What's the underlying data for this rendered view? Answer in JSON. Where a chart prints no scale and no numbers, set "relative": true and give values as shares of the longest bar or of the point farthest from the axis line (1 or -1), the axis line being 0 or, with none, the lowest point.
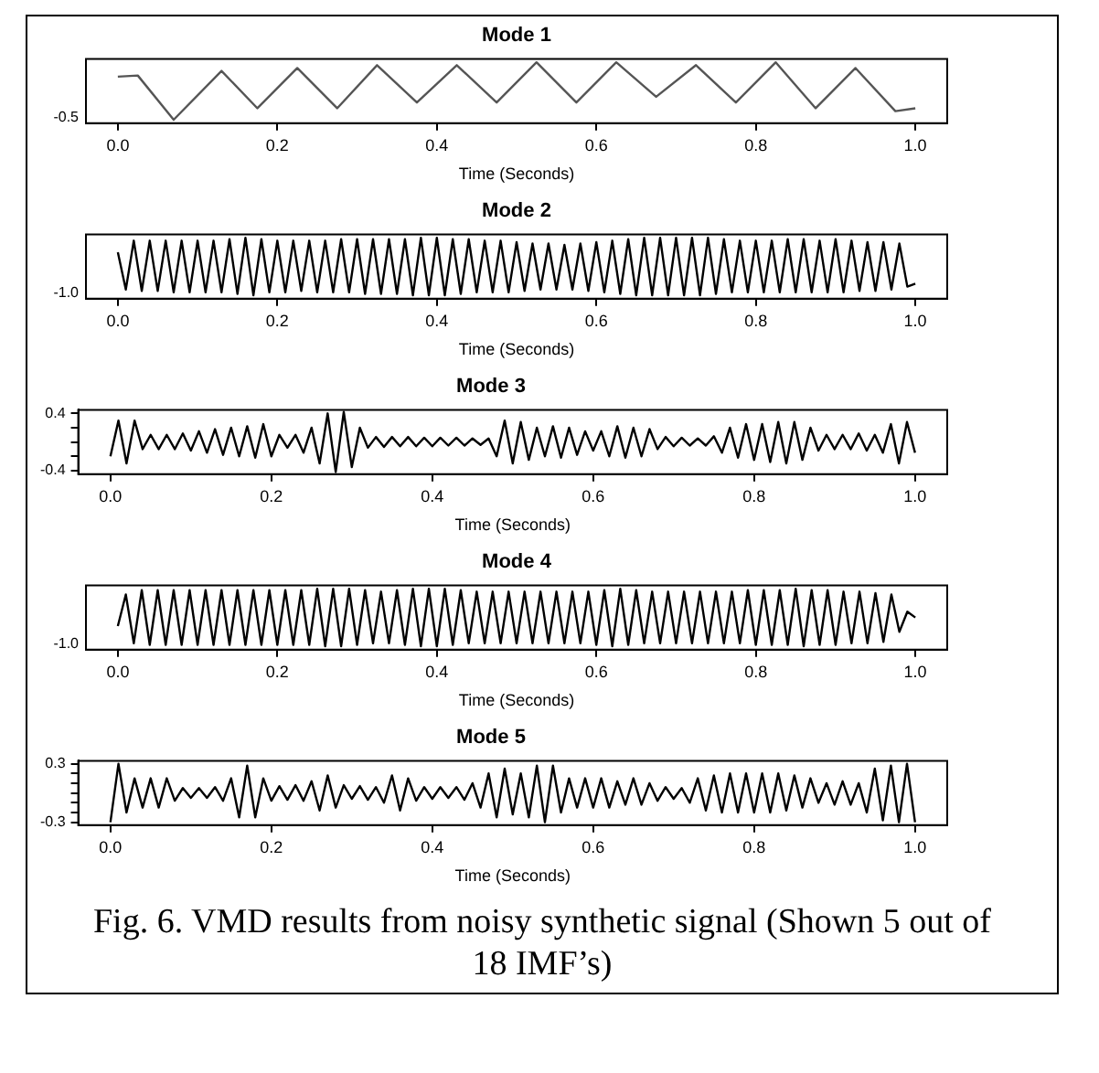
{
  "chart_data": [
    {
      "type": "line",
      "title": "Mode 1",
      "xlabel": "Time (Seconds)",
      "color": "#555555",
      "marker": "none",
      "line_style": "solid",
      "grid": false,
      "legend": false,
      "relative": true,
      "annotations": [
        "-0.5"
      ],
      "x": [
        0,
        0.025,
        0.07,
        0.13,
        0.175,
        0.225,
        0.275,
        0.325,
        0.375,
        0.425,
        0.475,
        0.525,
        0.575,
        0.625,
        0.675,
        0.725,
        0.775,
        0.825,
        0.875,
        0.925,
        0.975,
        1.0
      ],
      "values": [
        0.75,
        0.77,
        0,
        0.85,
        0.2,
        0.9,
        0.2,
        0.95,
        0.3,
        0.95,
        0.3,
        1,
        0.3,
        1,
        0.4,
        0.95,
        0.3,
        1,
        0.2,
        0.9,
        0.15,
        0.2
      ],
      "xlim": [
        -0.04,
        1.04
      ],
      "xticks": [
        {
          "value": 0,
          "label": "0.0"
        },
        {
          "value": 0.2,
          "label": "0.2"
        },
        {
          "value": 0.4,
          "label": "0.4"
        },
        {
          "value": 0.6,
          "label": "0.6"
        },
        {
          "value": 0.8,
          "label": "0.8"
        },
        {
          "value": 1,
          "label": "1.0"
        }
      ]
    },
    {
      "type": "line",
      "title": "Mode 2",
      "xlabel": "Time (Seconds)",
      "color": "#000000",
      "marker": "none",
      "line_style": "solid",
      "grid": false,
      "legend": false,
      "relative": true,
      "annotations": [
        "-1.0"
      ],
      "x": [
        0,
        0.01,
        0.02,
        0.03,
        0.04,
        0.05,
        0.06,
        0.07,
        0.08,
        0.09,
        0.1,
        0.11,
        0.12,
        0.13,
        0.14,
        0.15,
        0.16,
        0.17,
        0.18,
        0.19,
        0.2,
        0.21,
        0.22,
        0.23,
        0.24,
        0.25,
        0.26,
        0.27,
        0.28,
        0.29,
        0.3,
        0.31,
        0.32,
        0.33,
        0.34,
        0.35,
        0.36,
        0.37,
        0.38,
        0.39,
        0.4,
        0.41,
        0.42,
        0.43,
        0.44,
        0.45,
        0.46,
        0.47,
        0.48,
        0.49,
        0.5,
        0.51,
        0.52,
        0.53,
        0.54,
        0.55,
        0.56,
        0.57,
        0.58,
        0.59,
        0.6,
        0.61,
        0.62,
        0.63,
        0.64,
        0.65,
        0.66,
        0.67,
        0.68,
        0.69,
        0.7,
        0.71,
        0.72,
        0.73,
        0.74,
        0.75,
        0.76,
        0.77,
        0.78,
        0.79,
        0.8,
        0.81,
        0.82,
        0.83,
        0.84,
        0.85,
        0.86,
        0.87,
        0.88,
        0.89,
        0.9,
        0.91,
        0.92,
        0.93,
        0.94,
        0.95,
        0.96,
        0.97,
        0.98,
        0.99,
        1.0
      ],
      "values": [
        0.75,
        0.1,
        0.95,
        0.075,
        0.95,
        0.075,
        0.95,
        0.05,
        0.95,
        0.05,
        0.95,
        0.05,
        0.95,
        0.05,
        0.975,
        0.025,
        1,
        0,
        0.975,
        0.05,
        0.95,
        0.05,
        0.95,
        0.075,
        0.95,
        0.05,
        0.95,
        0.05,
        0.975,
        0.05,
        0.975,
        0.025,
        0.975,
        0.025,
        0.975,
        0.025,
        0.975,
        0,
        1,
        0,
        1,
        0,
        0.975,
        0.025,
        0.975,
        0.05,
        0.95,
        0.05,
        0.95,
        0.05,
        0.925,
        0.075,
        0.9,
        0.1,
        0.9,
        0.1,
        0.875,
        0.1,
        0.9,
        0.075,
        0.925,
        0.05,
        0.95,
        0.025,
        0.975,
        0,
        1,
        0,
        1,
        0,
        1,
        0,
        1,
        0,
        1,
        0.025,
        0.975,
        0.05,
        0.95,
        0.05,
        0.95,
        0.05,
        0.95,
        0.05,
        0.975,
        0.05,
        0.975,
        0.05,
        0.95,
        0.05,
        0.975,
        0.05,
        0.95,
        0.075,
        0.925,
        0.075,
        0.925,
        0.1,
        0.9,
        0.15,
        0.2
      ],
      "xlim": [
        -0.04,
        1.04
      ],
      "xticks": [
        {
          "value": 0,
          "label": "0.0"
        },
        {
          "value": 0.2,
          "label": "0.2"
        },
        {
          "value": 0.4,
          "label": "0.4"
        },
        {
          "value": 0.6,
          "label": "0.6"
        },
        {
          "value": 0.8,
          "label": "0.8"
        },
        {
          "value": 1,
          "label": "1.0"
        }
      ]
    },
    {
      "type": "line",
      "title": "Mode 3",
      "xlabel": "Time (Seconds)",
      "color": "#000000",
      "marker": "none",
      "line_style": "solid",
      "grid": false,
      "legend": false,
      "x": [
        0,
        0.01,
        0.02,
        0.03,
        0.04,
        0.05,
        0.06,
        0.07,
        0.08,
        0.09,
        0.1,
        0.11,
        0.12,
        0.13,
        0.14,
        0.15,
        0.16,
        0.17,
        0.18,
        0.19,
        0.2,
        0.21,
        0.22,
        0.23,
        0.24,
        0.25,
        0.26,
        0.27,
        0.28,
        0.29,
        0.3,
        0.31,
        0.32,
        0.33,
        0.34,
        0.35,
        0.36,
        0.37,
        0.38,
        0.39,
        0.4,
        0.41,
        0.42,
        0.43,
        0.44,
        0.45,
        0.46,
        0.47,
        0.48,
        0.49,
        0.5,
        0.51,
        0.52,
        0.53,
        0.54,
        0.55,
        0.56,
        0.57,
        0.58,
        0.59,
        0.6,
        0.61,
        0.62,
        0.63,
        0.64,
        0.65,
        0.66,
        0.67,
        0.68,
        0.69,
        0.7,
        0.71,
        0.72,
        0.73,
        0.74,
        0.75,
        0.76,
        0.77,
        0.78,
        0.79,
        0.8,
        0.81,
        0.82,
        0.83,
        0.84,
        0.85,
        0.86,
        0.87,
        0.88,
        0.89,
        0.9,
        0.91,
        0.92,
        0.93,
        0.94,
        0.95,
        0.96,
        0.97,
        0.98,
        0.99,
        1.0
      ],
      "values": [
        -0.2,
        0.3,
        -0.3,
        0.3,
        -0.1,
        0.1,
        -0.1,
        0.1,
        -0.1,
        0.12,
        -0.12,
        0.15,
        -0.15,
        0.18,
        -0.18,
        0.2,
        -0.2,
        0.22,
        -0.22,
        0.25,
        -0.2,
        0.1,
        -0.08,
        0.1,
        -0.15,
        0.2,
        -0.3,
        0.4,
        -0.42,
        0.42,
        -0.35,
        0.2,
        -0.08,
        0.07,
        -0.07,
        0.07,
        -0.06,
        0.07,
        -0.06,
        0.06,
        -0.06,
        0.06,
        -0.05,
        0.06,
        -0.05,
        0.05,
        -0.04,
        0.05,
        -0.2,
        0.3,
        -0.3,
        0.28,
        -0.25,
        0.2,
        -0.2,
        0.22,
        -0.22,
        0.2,
        -0.18,
        0.15,
        -0.12,
        0.15,
        -0.2,
        0.22,
        -0.22,
        0.2,
        -0.2,
        0.18,
        -0.1,
        0.07,
        -0.06,
        0.06,
        -0.05,
        0.05,
        -0.05,
        0.08,
        -0.15,
        0.2,
        -0.22,
        0.25,
        -0.25,
        0.25,
        -0.28,
        0.28,
        -0.3,
        0.28,
        -0.25,
        0.2,
        -0.12,
        0.1,
        -0.1,
        0.1,
        -0.1,
        0.12,
        -0.12,
        0.1,
        -0.15,
        0.25,
        -0.3,
        0.28,
        -0.15
      ],
      "xlim": [
        -0.04,
        1.04
      ],
      "xticks": [
        {
          "value": 0,
          "label": "0.0"
        },
        {
          "value": 0.2,
          "label": "0.2"
        },
        {
          "value": 0.4,
          "label": "0.4"
        },
        {
          "value": 0.6,
          "label": "0.6"
        },
        {
          "value": 0.8,
          "label": "0.8"
        },
        {
          "value": 1,
          "label": "1.0"
        }
      ],
      "ylim": [
        -0.45,
        0.45
      ],
      "yticks": [
        {
          "value": -0.4,
          "label": "-0.4"
        },
        {
          "value": -0.2,
          "label": null
        },
        {
          "value": 0,
          "label": null
        },
        {
          "value": 0.2,
          "label": null
        },
        {
          "value": 0.4,
          "label": "0.4"
        }
      ]
    },
    {
      "type": "line",
      "title": "Mode 4",
      "xlabel": "Time (Seconds)",
      "color": "#000000",
      "marker": "none",
      "line_style": "solid",
      "grid": false,
      "legend": false,
      "relative": true,
      "annotations": [
        "-1.0"
      ],
      "x": [
        0,
        0.01,
        0.02,
        0.03,
        0.04,
        0.05,
        0.06,
        0.07,
        0.08,
        0.09,
        0.1,
        0.11,
        0.12,
        0.13,
        0.14,
        0.15,
        0.16,
        0.17,
        0.18,
        0.19,
        0.2,
        0.21,
        0.22,
        0.23,
        0.24,
        0.25,
        0.26,
        0.27,
        0.28,
        0.29,
        0.3,
        0.31,
        0.32,
        0.33,
        0.34,
        0.35,
        0.36,
        0.37,
        0.38,
        0.39,
        0.4,
        0.41,
        0.42,
        0.43,
        0.44,
        0.45,
        0.46,
        0.47,
        0.48,
        0.49,
        0.5,
        0.51,
        0.52,
        0.53,
        0.54,
        0.55,
        0.56,
        0.57,
        0.58,
        0.59,
        0.6,
        0.61,
        0.62,
        0.63,
        0.64,
        0.65,
        0.66,
        0.67,
        0.68,
        0.69,
        0.7,
        0.71,
        0.72,
        0.73,
        0.74,
        0.75,
        0.76,
        0.77,
        0.78,
        0.79,
        0.8,
        0.81,
        0.82,
        0.83,
        0.84,
        0.85,
        0.86,
        0.87,
        0.88,
        0.89,
        0.9,
        0.91,
        0.92,
        0.93,
        0.94,
        0.95,
        0.96,
        0.97,
        0.98,
        0.99,
        1.0
      ],
      "values": [
        0.35,
        0.9,
        0.05,
        0.975,
        0.025,
        0.975,
        0.025,
        0.975,
        0.025,
        0.975,
        0.025,
        0.975,
        0.025,
        0.975,
        0.025,
        0.975,
        0.025,
        0.975,
        0.025,
        0.975,
        0.025,
        0.975,
        0.025,
        0.975,
        0.025,
        1,
        0,
        1,
        0,
        1,
        0.025,
        0.975,
        0.05,
        0.95,
        0.05,
        0.975,
        0.025,
        1,
        0,
        1,
        0,
        1,
        0.025,
        0.975,
        0.05,
        0.95,
        0.05,
        0.95,
        0.05,
        0.95,
        0.05,
        0.95,
        0.05,
        0.95,
        0.05,
        0.95,
        0.05,
        0.95,
        0.05,
        0.95,
        0.025,
        0.975,
        0,
        1,
        0.025,
        0.975,
        0.05,
        0.95,
        0.05,
        0.95,
        0.05,
        0.95,
        0.05,
        0.95,
        0.05,
        0.95,
        0.05,
        0.95,
        0.05,
        0.975,
        0.025,
        0.975,
        0.025,
        0.975,
        0.025,
        1,
        0,
        0.975,
        0.025,
        0.975,
        0.025,
        0.95,
        0.05,
        0.95,
        0.05,
        0.925,
        0.075,
        0.9,
        0.25,
        0.6,
        0.5
      ],
      "xlim": [
        -0.04,
        1.04
      ],
      "xticks": [
        {
          "value": 0,
          "label": "0.0"
        },
        {
          "value": 0.2,
          "label": "0.2"
        },
        {
          "value": 0.4,
          "label": "0.4"
        },
        {
          "value": 0.6,
          "label": "0.6"
        },
        {
          "value": 0.8,
          "label": "0.8"
        },
        {
          "value": 1,
          "label": "1.0"
        }
      ]
    },
    {
      "type": "line",
      "title": "Mode 5",
      "xlabel": "Time (Seconds)",
      "color": "#000000",
      "marker": "none",
      "line_style": "solid",
      "grid": false,
      "legend": false,
      "x": [
        0,
        0.01,
        0.02,
        0.03,
        0.04,
        0.05,
        0.06,
        0.07,
        0.08,
        0.09,
        0.1,
        0.11,
        0.12,
        0.13,
        0.14,
        0.15,
        0.16,
        0.17,
        0.18,
        0.19,
        0.2,
        0.21,
        0.22,
        0.23,
        0.24,
        0.25,
        0.26,
        0.27,
        0.28,
        0.29,
        0.3,
        0.31,
        0.32,
        0.33,
        0.34,
        0.35,
        0.36,
        0.37,
        0.38,
        0.39,
        0.4,
        0.41,
        0.42,
        0.43,
        0.44,
        0.45,
        0.46,
        0.47,
        0.48,
        0.49,
        0.5,
        0.51,
        0.52,
        0.53,
        0.54,
        0.55,
        0.56,
        0.57,
        0.58,
        0.59,
        0.6,
        0.61,
        0.62,
        0.63,
        0.64,
        0.65,
        0.66,
        0.67,
        0.68,
        0.69,
        0.7,
        0.71,
        0.72,
        0.73,
        0.74,
        0.75,
        0.76,
        0.77,
        0.78,
        0.79,
        0.8,
        0.81,
        0.82,
        0.83,
        0.84,
        0.85,
        0.86,
        0.87,
        0.88,
        0.89,
        0.9,
        0.91,
        0.92,
        0.93,
        0.94,
        0.95,
        0.96,
        0.97,
        0.98,
        0.99,
        1.0
      ],
      "values": [
        -0.3,
        0.3,
        -0.2,
        0.15,
        -0.15,
        0.15,
        -0.15,
        0.15,
        -0.08,
        0.05,
        -0.05,
        0.05,
        -0.05,
        0.06,
        -0.08,
        0.15,
        -0.25,
        0.28,
        -0.25,
        0.15,
        -0.08,
        0.07,
        -0.07,
        0.08,
        -0.08,
        0.12,
        -0.18,
        0.18,
        -0.15,
        0.08,
        -0.06,
        0.07,
        -0.07,
        0.06,
        -0.1,
        0.18,
        -0.18,
        0.15,
        -0.08,
        0.06,
        -0.06,
        0.06,
        -0.05,
        0.06,
        -0.07,
        0.1,
        -0.15,
        0.2,
        -0.25,
        0.25,
        -0.22,
        0.2,
        -0.25,
        0.28,
        -0.3,
        0.28,
        -0.2,
        0.15,
        -0.15,
        0.15,
        -0.15,
        0.15,
        -0.15,
        0.12,
        -0.12,
        0.15,
        -0.12,
        0.1,
        -0.08,
        0.06,
        -0.06,
        0.05,
        -0.1,
        0.15,
        -0.18,
        0.18,
        -0.2,
        0.2,
        -0.2,
        0.2,
        -0.2,
        0.2,
        -0.2,
        0.2,
        -0.18,
        0.18,
        -0.15,
        0.15,
        -0.1,
        0.1,
        -0.12,
        0.12,
        -0.12,
        0.1,
        -0.2,
        0.25,
        -0.28,
        0.28,
        -0.3,
        0.3,
        -0.3
      ],
      "xlim": [
        -0.04,
        1.04
      ],
      "xticks": [
        {
          "value": 0,
          "label": "0.0"
        },
        {
          "value": 0.2,
          "label": "0.2"
        },
        {
          "value": 0.4,
          "label": "0.4"
        },
        {
          "value": 0.6,
          "label": "0.6"
        },
        {
          "value": 0.8,
          "label": "0.8"
        },
        {
          "value": 1,
          "label": "1.0"
        }
      ],
      "ylim": [
        -0.33,
        0.33
      ],
      "yticks": [
        {
          "value": -0.3,
          "label": "-0.3"
        },
        {
          "value": -0.2,
          "label": null
        },
        {
          "value": -0.1,
          "label": null
        },
        {
          "value": 0,
          "label": null
        },
        {
          "value": 0.1,
          "label": null
        },
        {
          "value": 0.2,
          "label": null
        },
        {
          "value": 0.3,
          "label": "0.3"
        }
      ],
      "annotations": [
        "Fig. 6. VMD results from noisy synthetic signal (Shown 5  out of 18 IMF’s)"
      ]
    }
  ]
}
